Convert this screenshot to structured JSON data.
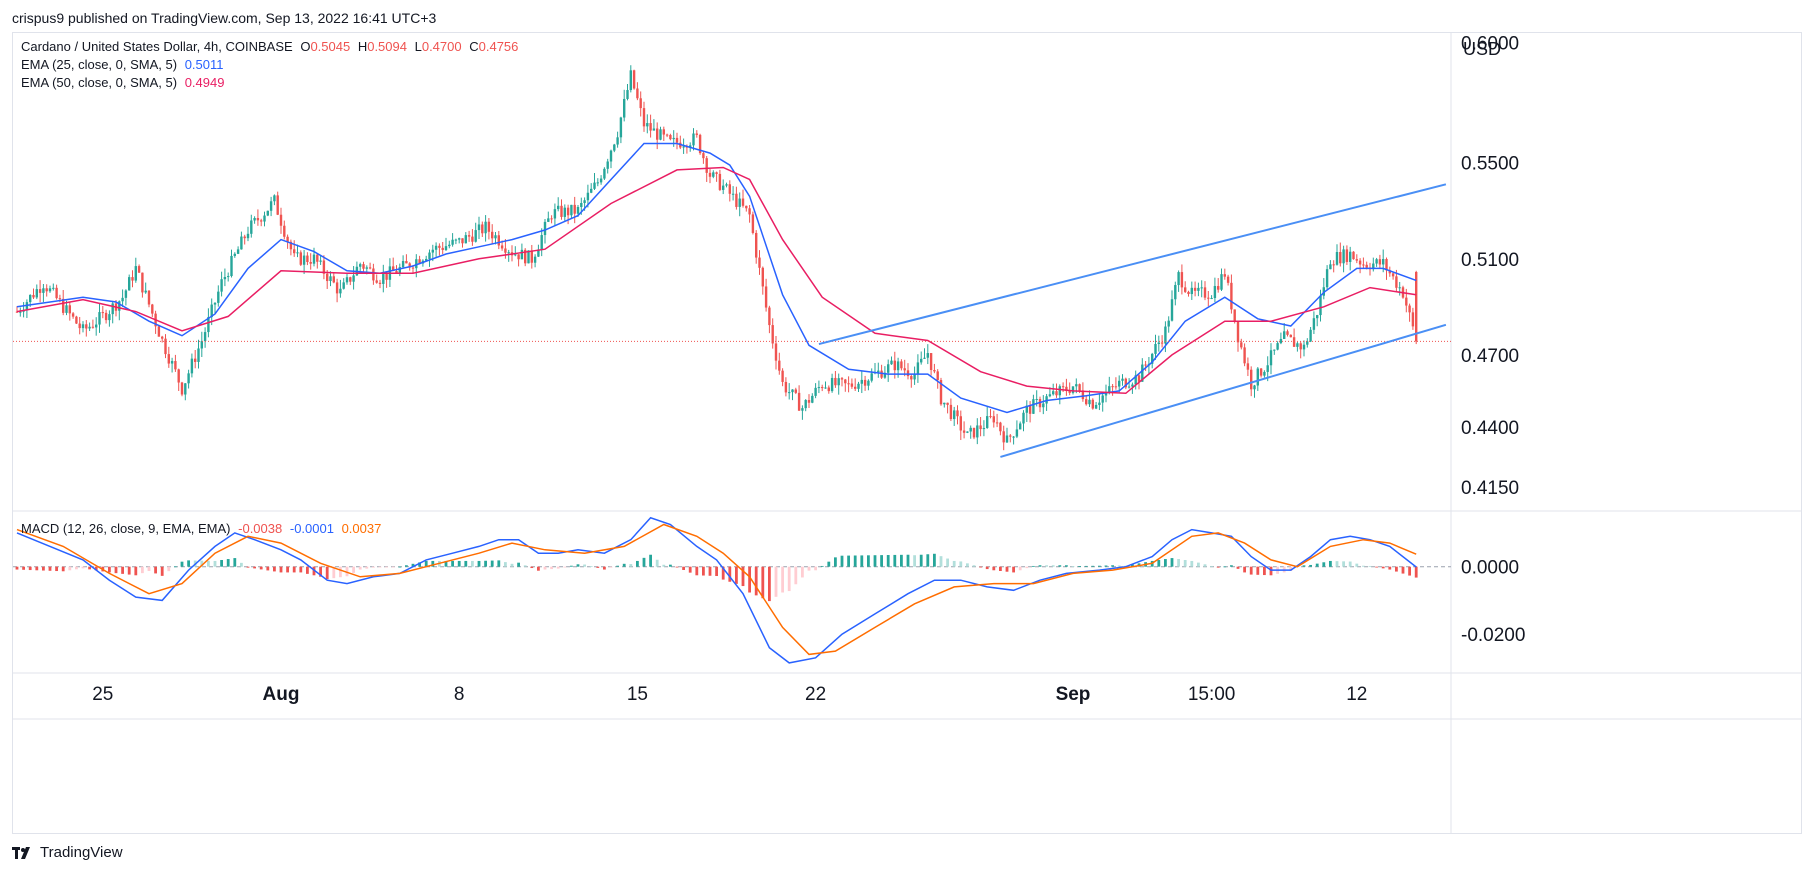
{
  "header": {
    "publish_text": "crispus9 published on TradingView.com, Sep 13, 2022 16:41 UTC+3"
  },
  "legend": {
    "symbol": "Cardano / United States Dollar, 4h, COINBASE",
    "o_label": "O",
    "o_value": "0.5045",
    "h_label": "H",
    "h_value": "0.5094",
    "l_label": "L",
    "l_value": "0.4700",
    "c_label": "C",
    "c_value": "0.4756",
    "ema1_label": "EMA (25, close, 0, SMA, 5)",
    "ema1_value": "0.5011",
    "ema2_label": "EMA (50, close, 0, SMA, 5)",
    "ema2_value": "0.4949",
    "macd_label": "MACD (12, 26, close, 9, EMA, EMA)",
    "macd_hist": "-0.0038",
    "macd_line": "-0.0001",
    "macd_signal": "0.0037"
  },
  "footer": {
    "brand": "TradingView"
  },
  "colors": {
    "up": "#26a69a",
    "down": "#ef5350",
    "ema25": "#2962ff",
    "ema50": "#e91e63",
    "trend": "#4a8ff5",
    "macd": "#2962ff",
    "signal": "#ff6d00",
    "hist_up": "#26a69a",
    "hist_up_light": "#b2dfdb",
    "hist_dn": "#ef5350",
    "hist_dn_light": "#ffcdd2",
    "axis_text": "#131722",
    "grid": "#f0f3fa"
  },
  "chart_data": [
    {
      "type": "candlestick",
      "title": "Cardano / United States Dollar, 4h, COINBASE",
      "ylabel": "USD",
      "ylim": [
        0.405,
        0.604
      ],
      "y_ticks": [
        "0.6000",
        "0.5500",
        "0.5100",
        "0.4700",
        "0.4400",
        "0.4150"
      ],
      "x_ticks": [
        "25",
        "Aug",
        "8",
        "15",
        "22",
        "Sep",
        "15:00",
        "12"
      ],
      "last_close": 0.4756,
      "grid": false,
      "close_path": [
        [
          0,
          0.488
        ],
        [
          8,
          0.5
        ],
        [
          14,
          0.49
        ],
        [
          20,
          0.48
        ],
        [
          26,
          0.486
        ],
        [
          32,
          0.494
        ],
        [
          36,
          0.506
        ],
        [
          44,
          0.476
        ],
        [
          50,
          0.456
        ],
        [
          56,
          0.476
        ],
        [
          62,
          0.5
        ],
        [
          70,
          0.522
        ],
        [
          78,
          0.534
        ],
        [
          84,
          0.51
        ],
        [
          90,
          0.51
        ],
        [
          98,
          0.496
        ],
        [
          104,
          0.508
        ],
        [
          110,
          0.502
        ],
        [
          118,
          0.507
        ],
        [
          126,
          0.514
        ],
        [
          134,
          0.517
        ],
        [
          142,
          0.523
        ],
        [
          150,
          0.513
        ],
        [
          156,
          0.51
        ],
        [
          162,
          0.529
        ],
        [
          170,
          0.53
        ],
        [
          176,
          0.542
        ],
        [
          182,
          0.563
        ],
        [
          186,
          0.586
        ],
        [
          190,
          0.566
        ],
        [
          198,
          0.558
        ],
        [
          206,
          0.56
        ],
        [
          210,
          0.545
        ],
        [
          214,
          0.54
        ],
        [
          222,
          0.528
        ],
        [
          228,
          0.482
        ],
        [
          232,
          0.458
        ],
        [
          238,
          0.448
        ],
        [
          244,
          0.458
        ],
        [
          252,
          0.457
        ],
        [
          260,
          0.462
        ],
        [
          266,
          0.466
        ],
        [
          272,
          0.462
        ],
        [
          276,
          0.471
        ],
        [
          280,
          0.452
        ],
        [
          288,
          0.436
        ],
        [
          296,
          0.444
        ],
        [
          300,
          0.434
        ],
        [
          306,
          0.447
        ],
        [
          312,
          0.452
        ],
        [
          320,
          0.457
        ],
        [
          326,
          0.45
        ],
        [
          334,
          0.458
        ],
        [
          340,
          0.461
        ],
        [
          348,
          0.48
        ],
        [
          352,
          0.503
        ],
        [
          356,
          0.495
        ],
        [
          362,
          0.496
        ],
        [
          366,
          0.504
        ],
        [
          370,
          0.478
        ],
        [
          374,
          0.458
        ],
        [
          378,
          0.465
        ],
        [
          384,
          0.477
        ],
        [
          390,
          0.473
        ],
        [
          394,
          0.488
        ],
        [
          398,
          0.51
        ],
        [
          404,
          0.512
        ],
        [
          408,
          0.508
        ],
        [
          414,
          0.508
        ],
        [
          420,
          0.496
        ],
        [
          424,
          0.476
        ]
      ],
      "ema25_path": [
        [
          0,
          0.49
        ],
        [
          20,
          0.494
        ],
        [
          30,
          0.492
        ],
        [
          40,
          0.484
        ],
        [
          50,
          0.478
        ],
        [
          60,
          0.487
        ],
        [
          70,
          0.506
        ],
        [
          80,
          0.518
        ],
        [
          90,
          0.513
        ],
        [
          100,
          0.505
        ],
        [
          110,
          0.504
        ],
        [
          120,
          0.507
        ],
        [
          130,
          0.512
        ],
        [
          140,
          0.515
        ],
        [
          150,
          0.518
        ],
        [
          160,
          0.522
        ],
        [
          170,
          0.528
        ],
        [
          180,
          0.543
        ],
        [
          190,
          0.558
        ],
        [
          200,
          0.558
        ],
        [
          210,
          0.554
        ],
        [
          216,
          0.549
        ],
        [
          222,
          0.536
        ],
        [
          232,
          0.495
        ],
        [
          240,
          0.474
        ],
        [
          252,
          0.464
        ],
        [
          264,
          0.462
        ],
        [
          276,
          0.462
        ],
        [
          286,
          0.452
        ],
        [
          300,
          0.446
        ],
        [
          312,
          0.451
        ],
        [
          324,
          0.453
        ],
        [
          334,
          0.455
        ],
        [
          344,
          0.467
        ],
        [
          354,
          0.484
        ],
        [
          366,
          0.494
        ],
        [
          376,
          0.485
        ],
        [
          386,
          0.482
        ],
        [
          396,
          0.496
        ],
        [
          406,
          0.506
        ],
        [
          414,
          0.506
        ],
        [
          424,
          0.501
        ]
      ],
      "ema50_path": [
        [
          0,
          0.488
        ],
        [
          20,
          0.493
        ],
        [
          36,
          0.488
        ],
        [
          50,
          0.48
        ],
        [
          64,
          0.486
        ],
        [
          80,
          0.505
        ],
        [
          100,
          0.504
        ],
        [
          120,
          0.504
        ],
        [
          140,
          0.51
        ],
        [
          160,
          0.514
        ],
        [
          180,
          0.533
        ],
        [
          200,
          0.547
        ],
        [
          214,
          0.548
        ],
        [
          222,
          0.543
        ],
        [
          232,
          0.518
        ],
        [
          244,
          0.494
        ],
        [
          260,
          0.479
        ],
        [
          276,
          0.476
        ],
        [
          292,
          0.463
        ],
        [
          306,
          0.457
        ],
        [
          320,
          0.455
        ],
        [
          336,
          0.454
        ],
        [
          350,
          0.47
        ],
        [
          366,
          0.484
        ],
        [
          380,
          0.484
        ],
        [
          396,
          0.49
        ],
        [
          410,
          0.498
        ],
        [
          424,
          0.495
        ]
      ],
      "trendlines": [
        [
          [
            243,
            0.4745
          ],
          [
            433,
            0.541
          ]
        ],
        [
          [
            298,
            0.4275
          ],
          [
            433,
            0.4825
          ]
        ]
      ]
    },
    {
      "type": "macd",
      "title": "MACD (12, 26, close, 9, EMA, EMA)",
      "ylim": [
        -0.0315,
        0.0165
      ],
      "y_ticks": [
        "0.0000",
        "-0.0200"
      ],
      "macd_path": [
        [
          0,
          0.01
        ],
        [
          10,
          0.006
        ],
        [
          20,
          0.002
        ],
        [
          28,
          -0.004
        ],
        [
          36,
          -0.009
        ],
        [
          44,
          -0.01
        ],
        [
          52,
          -0.001
        ],
        [
          60,
          0.006
        ],
        [
          66,
          0.01
        ],
        [
          72,
          0.008
        ],
        [
          80,
          0.005
        ],
        [
          86,
          0.002
        ],
        [
          94,
          -0.004
        ],
        [
          100,
          -0.005
        ],
        [
          108,
          -0.003
        ],
        [
          116,
          -0.002
        ],
        [
          124,
          0.002
        ],
        [
          132,
          0.004
        ],
        [
          140,
          0.006
        ],
        [
          146,
          0.008
        ],
        [
          152,
          0.008
        ],
        [
          158,
          0.004
        ],
        [
          164,
          0.004
        ],
        [
          170,
          0.005
        ],
        [
          178,
          0.004
        ],
        [
          186,
          0.008
        ],
        [
          192,
          0.0145
        ],
        [
          198,
          0.0125
        ],
        [
          206,
          0.006
        ],
        [
          212,
          0.002
        ],
        [
          220,
          -0.008
        ],
        [
          228,
          -0.024
        ],
        [
          234,
          -0.0285
        ],
        [
          242,
          -0.027
        ],
        [
          250,
          -0.02
        ],
        [
          260,
          -0.014
        ],
        [
          270,
          -0.008
        ],
        [
          278,
          -0.004
        ],
        [
          286,
          -0.004
        ],
        [
          294,
          -0.006
        ],
        [
          302,
          -0.007
        ],
        [
          310,
          -0.004
        ],
        [
          318,
          -0.002
        ],
        [
          328,
          -0.001
        ],
        [
          336,
          0.0
        ],
        [
          344,
          0.003
        ],
        [
          350,
          0.008
        ],
        [
          356,
          0.011
        ],
        [
          362,
          0.01
        ],
        [
          368,
          0.009
        ],
        [
          374,
          0.003
        ],
        [
          380,
          -0.001
        ],
        [
          386,
          -0.001
        ],
        [
          392,
          0.003
        ],
        [
          398,
          0.008
        ],
        [
          404,
          0.009
        ],
        [
          410,
          0.008
        ],
        [
          416,
          0.006
        ],
        [
          424,
          -0.0001
        ]
      ],
      "signal_path": [
        [
          0,
          0.011
        ],
        [
          14,
          0.006
        ],
        [
          28,
          -0.002
        ],
        [
          40,
          -0.008
        ],
        [
          50,
          -0.005
        ],
        [
          60,
          0.004
        ],
        [
          70,
          0.009
        ],
        [
          80,
          0.007
        ],
        [
          92,
          0.001
        ],
        [
          104,
          -0.003
        ],
        [
          116,
          -0.002
        ],
        [
          128,
          0.001
        ],
        [
          140,
          0.004
        ],
        [
          150,
          0.007
        ],
        [
          160,
          0.005
        ],
        [
          172,
          0.004
        ],
        [
          184,
          0.006
        ],
        [
          196,
          0.0125
        ],
        [
          206,
          0.009
        ],
        [
          214,
          0.004
        ],
        [
          222,
          -0.003
        ],
        [
          232,
          -0.018
        ],
        [
          240,
          -0.026
        ],
        [
          248,
          -0.025
        ],
        [
          260,
          -0.018
        ],
        [
          272,
          -0.011
        ],
        [
          284,
          -0.006
        ],
        [
          296,
          -0.005
        ],
        [
          308,
          -0.005
        ],
        [
          320,
          -0.002
        ],
        [
          332,
          -0.001
        ],
        [
          344,
          0.001
        ],
        [
          356,
          0.009
        ],
        [
          364,
          0.01
        ],
        [
          372,
          0.007
        ],
        [
          380,
          0.002
        ],
        [
          388,
          0.0
        ],
        [
          398,
          0.006
        ],
        [
          408,
          0.008
        ],
        [
          416,
          0.007
        ],
        [
          424,
          0.0037
        ]
      ]
    }
  ]
}
